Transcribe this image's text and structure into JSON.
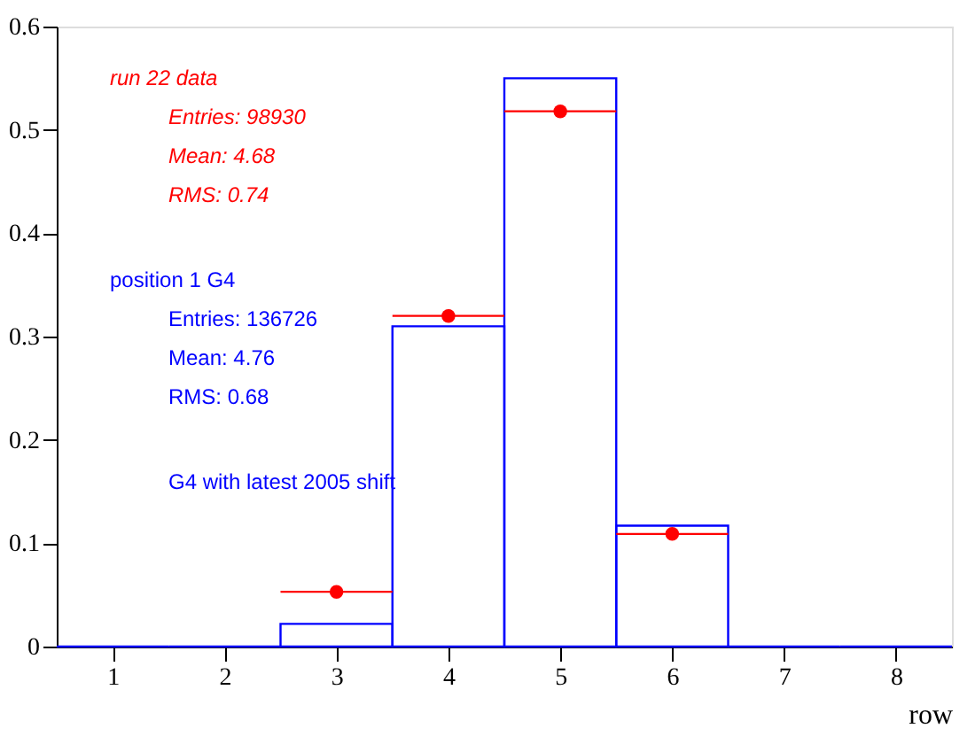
{
  "chart_data": {
    "type": "histogram",
    "xlabel": "row",
    "xlim": [
      0.5,
      8.5
    ],
    "xticks": [
      1,
      2,
      3,
      4,
      5,
      6,
      7,
      8
    ],
    "ylim": [
      0,
      0.6
    ],
    "yticks": [
      0,
      0.1,
      0.2,
      0.3,
      0.4,
      0.5,
      0.6
    ],
    "series": [
      {
        "name": "run 22 data",
        "type": "scatter",
        "color": "#ff0000",
        "marker": "circle",
        "x": [
          3,
          4,
          5,
          6
        ],
        "values": [
          0.053,
          0.32,
          0.518,
          0.109
        ],
        "xerrors": [
          0.5,
          0.5,
          0.5,
          0.5
        ]
      },
      {
        "name": "position 1 G4",
        "color": "#0000ff",
        "bins": [
          0.5,
          1.5,
          2.5,
          3.5,
          4.5,
          5.5,
          6.5,
          7.5,
          8.5
        ],
        "values": [
          0,
          0,
          0.022,
          0.31,
          0.55,
          0.117,
          0,
          0
        ]
      }
    ],
    "annotations": [
      "Entries: 98930",
      "Mean: 4.68",
      "RMS: 0.74",
      "Entries: 136726",
      "Mean: 4.76",
      "RMS: 0.68",
      "G4 with latest 2005 shift"
    ]
  }
}
